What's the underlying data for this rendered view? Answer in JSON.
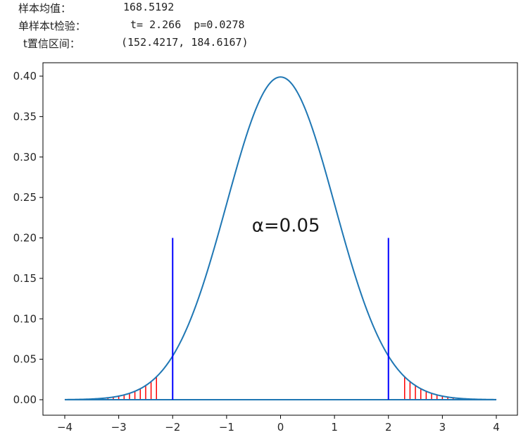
{
  "stats": {
    "mean_label": "样本均值：",
    "mean_value": "168.5192",
    "ttest_label": "单样本t检验：",
    "ttest_value": "t= 2.266  p=0.0278",
    "ci_label": "t置信区间：",
    "ci_value": "(152.4217, 184.6167)"
  },
  "chart_data": {
    "type": "line",
    "title": "",
    "xlabel": "",
    "ylabel": "",
    "xlim": [
      -4,
      4
    ],
    "ylim": [
      0,
      0.4
    ],
    "x_ticks": [
      -4,
      -3,
      -2,
      -1,
      0,
      1,
      2,
      3,
      4
    ],
    "y_ticks": [
      0.0,
      0.05,
      0.1,
      0.15,
      0.2,
      0.25,
      0.3,
      0.35,
      0.4
    ],
    "x_tick_labels": [
      "−4",
      "−3",
      "−2",
      "−1",
      "0",
      "1",
      "2",
      "3",
      "4"
    ],
    "y_tick_labels": [
      "0.00",
      "0.05",
      "0.10",
      "0.15",
      "0.20",
      "0.25",
      "0.30",
      "0.35",
      "0.40"
    ],
    "series": [
      {
        "distribution": "standard-normal-pdf",
        "x_range": [
          -4,
          4
        ],
        "color": "#1f77b4"
      }
    ],
    "baseline": {
      "y": 0,
      "x_range": [
        -4,
        4
      ],
      "color": "#1f77b4"
    },
    "critical_lines": [
      {
        "x": -2.0,
        "y_max": 0.2,
        "color": "#0000ff"
      },
      {
        "x": 2.0,
        "y_max": 0.2,
        "color": "#0000ff"
      }
    ],
    "shaded_tails": [
      {
        "x_range": [
          -4,
          -2.3
        ],
        "step": 0.1,
        "color": "#ff0000"
      },
      {
        "x_range": [
          2.3,
          4
        ],
        "step": 0.1,
        "color": "#ff0000"
      }
    ],
    "annotation": {
      "text": "α=0.05",
      "x": 0.1,
      "y": 0.208
    }
  }
}
